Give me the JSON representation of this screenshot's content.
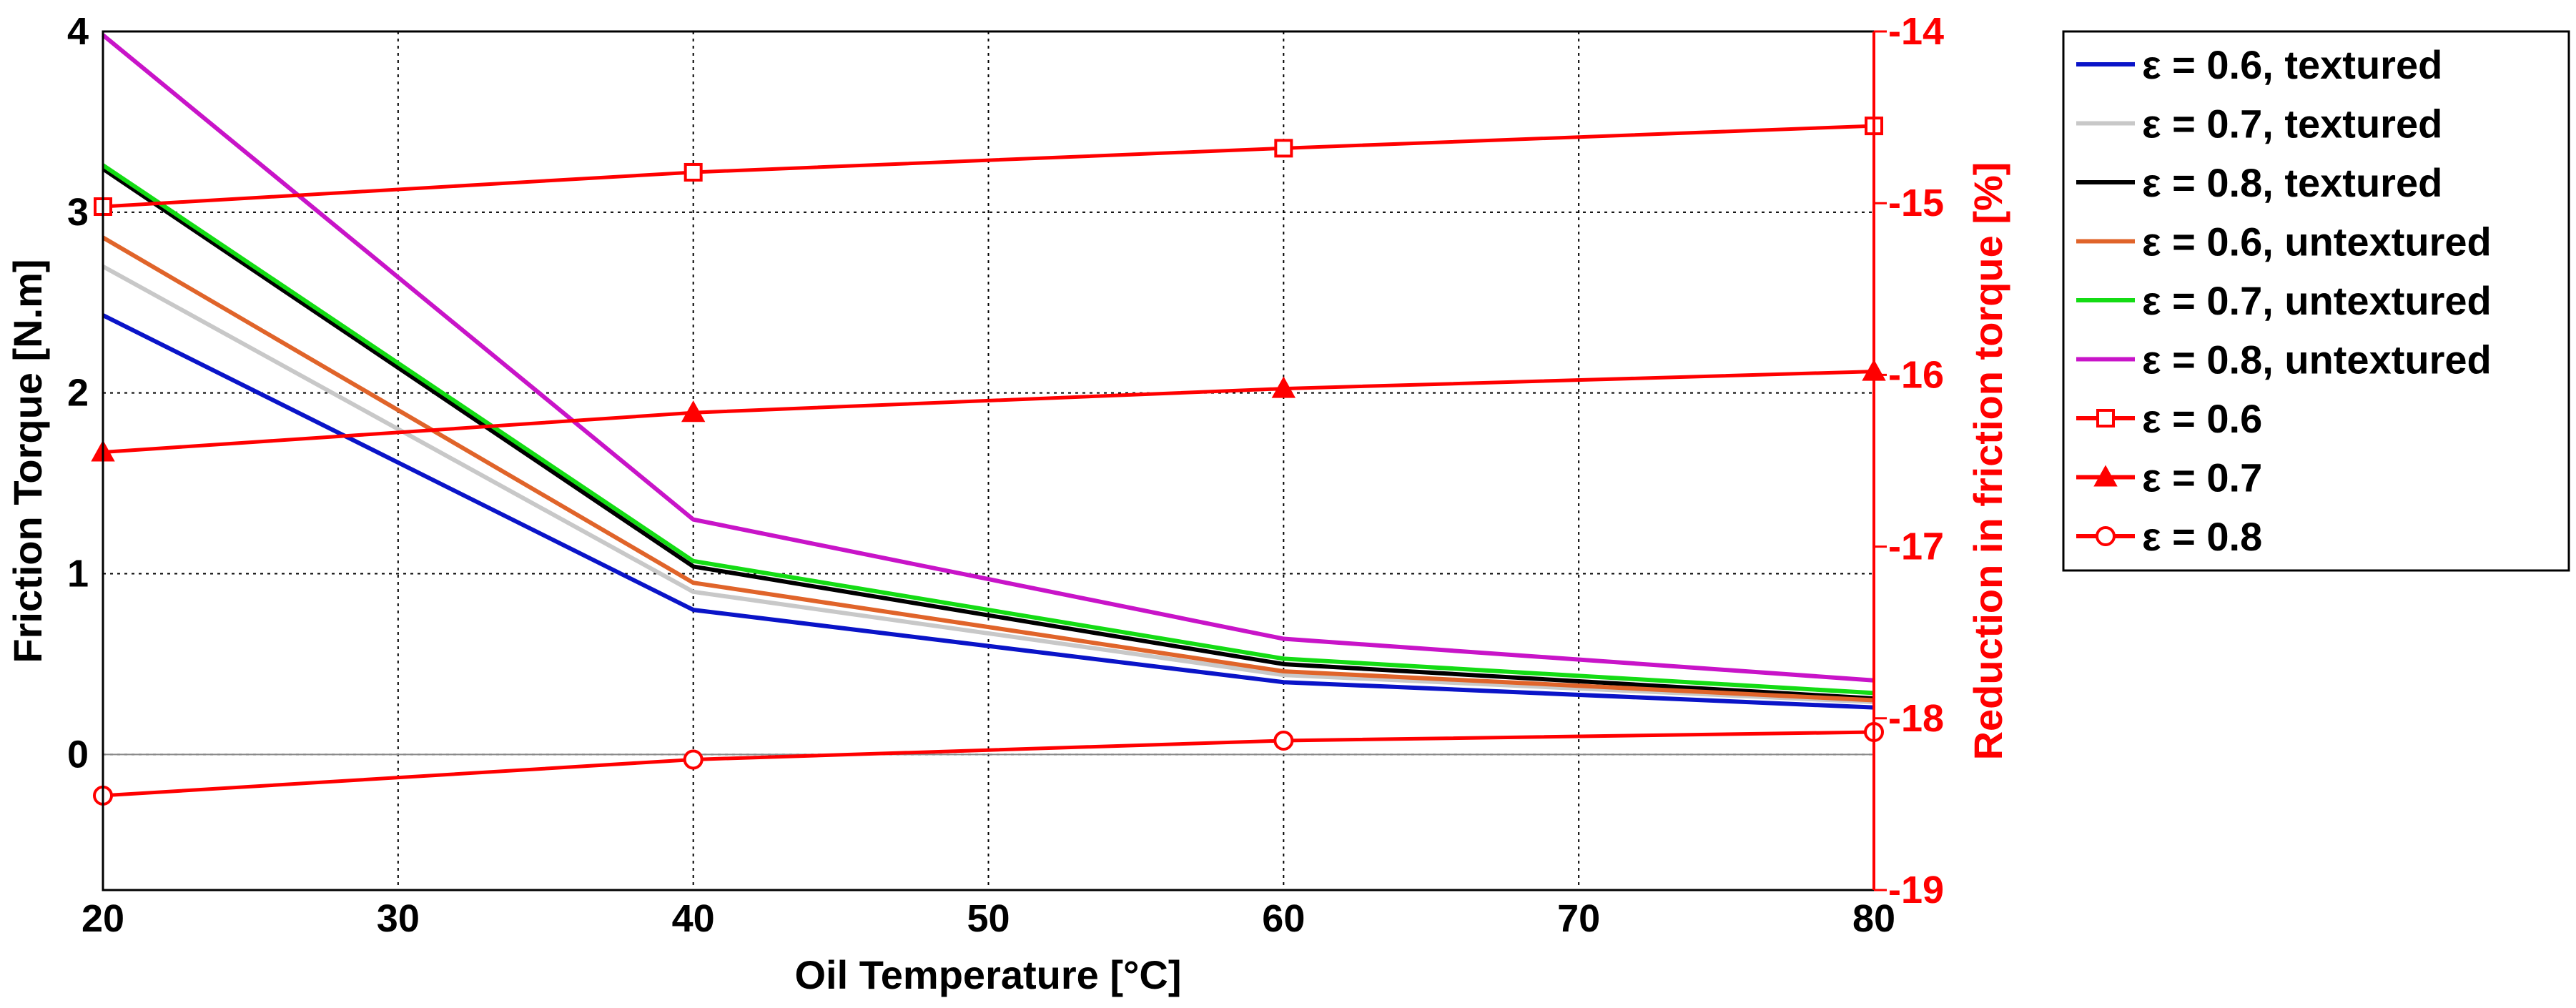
{
  "chart_data": {
    "type": "line",
    "title": "",
    "xlabel": "Oil Temperature [°C]",
    "ylabel": "Friction Torque [N.m]",
    "y2label": "Reduction in friction torque [%]",
    "xlim": [
      20,
      80
    ],
    "ylim": [
      -0.75,
      4
    ],
    "y2lim": [
      -19,
      -14
    ],
    "x_ticks": [
      "20",
      "30",
      "40",
      "50",
      "60",
      "70",
      "80"
    ],
    "y_ticks": [
      "0",
      "1",
      "2",
      "3",
      "4"
    ],
    "y2_ticks": [
      "-19",
      "-18",
      "-17",
      "-16",
      "-15",
      "-14"
    ],
    "grid": true,
    "legend_position": "outside-right",
    "x": [
      20,
      40,
      60,
      80
    ],
    "series": [
      {
        "name": "ε = 0.6, textured",
        "axis": "left",
        "color": "#0a14c8",
        "marker": "none",
        "values": [
          2.43,
          0.8,
          0.4,
          0.26
        ]
      },
      {
        "name": "ε = 0.7, textured",
        "axis": "left",
        "color": "#c8c8c8",
        "marker": "none",
        "values": [
          2.7,
          0.9,
          0.44,
          0.29
        ]
      },
      {
        "name": "ε = 0.8, textured",
        "axis": "left",
        "color": "#000000",
        "marker": "none",
        "values": [
          3.24,
          1.04,
          0.5,
          0.31
        ]
      },
      {
        "name": "ε = 0.6, untextured",
        "axis": "left",
        "color": "#e0642a",
        "marker": "none",
        "values": [
          2.86,
          0.95,
          0.46,
          0.3
        ]
      },
      {
        "name": "ε = 0.7, untextured",
        "axis": "left",
        "color": "#14dc14",
        "marker": "none",
        "values": [
          3.26,
          1.07,
          0.53,
          0.34
        ]
      },
      {
        "name": "ε = 0.8, untextured",
        "axis": "left",
        "color": "#c814c8",
        "marker": "none",
        "values": [
          3.98,
          1.3,
          0.64,
          0.41
        ]
      },
      {
        "name": "ε = 0.6",
        "axis": "right",
        "color": "#ff0000",
        "marker": "square",
        "values": [
          -15.02,
          -14.82,
          -14.68,
          -14.55
        ]
      },
      {
        "name": "ε = 0.7",
        "axis": "right",
        "color": "#ff0000",
        "marker": "triangle",
        "values": [
          -16.45,
          -16.22,
          -16.08,
          -15.98
        ]
      },
      {
        "name": "ε = 0.8",
        "axis": "right",
        "color": "#ff0000",
        "marker": "circle",
        "values": [
          -18.45,
          -18.24,
          -18.13,
          -18.08
        ]
      }
    ]
  }
}
